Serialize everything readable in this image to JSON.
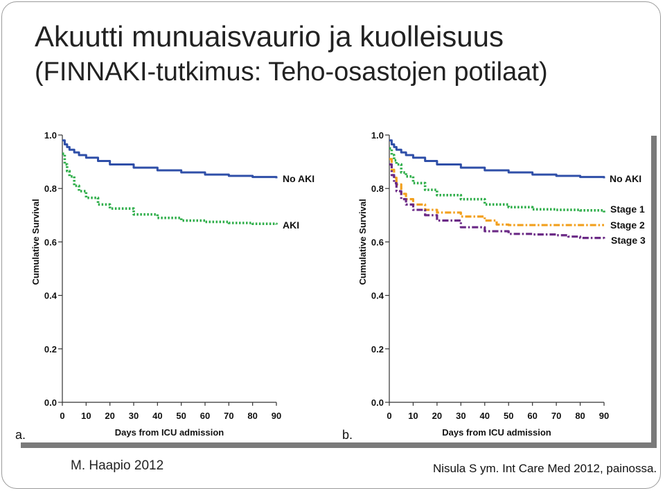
{
  "title": "Akuutti munuaisvaurio ja kuolleisuus",
  "subtitle": "(FINNAKI-tutkimus: Teho-osastojen potilaat)",
  "footer": {
    "author": "M. Haapio 2012",
    "citation": "Nisula S ym. Int Care Med 2012, painossa."
  },
  "chart_data": [
    {
      "type": "line",
      "panel": "a.",
      "xlabel": "Days from ICU admission",
      "ylabel": "Cumulative Survival",
      "xlim": [
        0,
        90
      ],
      "ylim": [
        0,
        1
      ],
      "xticks": [
        "0",
        "10",
        "20",
        "30",
        "40",
        "50",
        "60",
        "70",
        "80",
        "90"
      ],
      "yticks": [
        "0.0",
        "0.2",
        "0.4",
        "0.6",
        "0.8",
        "1.0"
      ],
      "series": [
        {
          "name": "No AKI",
          "color": "#2f4fa8",
          "style": "solid",
          "x": [
            0,
            1,
            2,
            3,
            5,
            7,
            10,
            15,
            20,
            30,
            40,
            50,
            60,
            70,
            80,
            90
          ],
          "y": [
            0.98,
            0.965,
            0.955,
            0.945,
            0.935,
            0.925,
            0.915,
            0.903,
            0.89,
            0.878,
            0.868,
            0.86,
            0.852,
            0.847,
            0.843,
            0.838
          ]
        },
        {
          "name": "AKI",
          "color": "#2fae4a",
          "style": "dotted",
          "x": [
            0,
            1,
            2,
            3,
            5,
            7,
            10,
            15,
            20,
            30,
            40,
            50,
            60,
            70,
            80,
            90
          ],
          "y": [
            0.93,
            0.89,
            0.865,
            0.845,
            0.81,
            0.79,
            0.765,
            0.74,
            0.725,
            0.703,
            0.69,
            0.68,
            0.675,
            0.671,
            0.668,
            0.665
          ]
        }
      ]
    },
    {
      "type": "line",
      "panel": "b.",
      "xlabel": "Days from ICU admission",
      "ylabel": "Cumulative Survival",
      "xlim": [
        0,
        90
      ],
      "ylim": [
        0,
        1
      ],
      "xticks": [
        "0",
        "10",
        "20",
        "30",
        "40",
        "50",
        "60",
        "70",
        "80",
        "90"
      ],
      "yticks": [
        "0.0",
        "0.2",
        "0.4",
        "0.6",
        "0.8",
        "1.0"
      ],
      "series": [
        {
          "name": "No AKI",
          "color": "#2f4fa8",
          "style": "solid",
          "x": [
            0,
            1,
            2,
            3,
            5,
            7,
            10,
            15,
            20,
            30,
            40,
            50,
            60,
            70,
            80,
            90
          ],
          "y": [
            0.98,
            0.965,
            0.955,
            0.945,
            0.935,
            0.925,
            0.915,
            0.903,
            0.89,
            0.878,
            0.868,
            0.86,
            0.852,
            0.847,
            0.843,
            0.838
          ]
        },
        {
          "name": "Stage 1",
          "color": "#2fae4a",
          "style": "dotted",
          "x": [
            0,
            1,
            2,
            3,
            5,
            7,
            10,
            15,
            20,
            30,
            40,
            50,
            60,
            70,
            80,
            90
          ],
          "y": [
            0.95,
            0.925,
            0.905,
            0.89,
            0.86,
            0.845,
            0.82,
            0.795,
            0.775,
            0.76,
            0.74,
            0.73,
            0.722,
            0.72,
            0.718,
            0.71
          ]
        },
        {
          "name": "Stage 2",
          "color": "#f2a01e",
          "style": "dashdot",
          "x": [
            0,
            1,
            2,
            3,
            5,
            7,
            10,
            15,
            20,
            25,
            30,
            40,
            45,
            50,
            60,
            70,
            80,
            90
          ],
          "y": [
            0.91,
            0.87,
            0.84,
            0.815,
            0.78,
            0.76,
            0.74,
            0.72,
            0.71,
            0.71,
            0.695,
            0.68,
            0.665,
            0.663,
            0.663,
            0.663,
            0.663,
            0.663
          ]
        },
        {
          "name": "Stage 3",
          "color": "#6b2a86",
          "style": "dashdot",
          "x": [
            0,
            1,
            2,
            3,
            5,
            7,
            10,
            15,
            20,
            30,
            40,
            50,
            60,
            70,
            75,
            80,
            90
          ],
          "y": [
            0.89,
            0.85,
            0.82,
            0.79,
            0.76,
            0.74,
            0.72,
            0.7,
            0.68,
            0.655,
            0.64,
            0.63,
            0.628,
            0.625,
            0.62,
            0.615,
            0.612
          ]
        }
      ]
    }
  ]
}
